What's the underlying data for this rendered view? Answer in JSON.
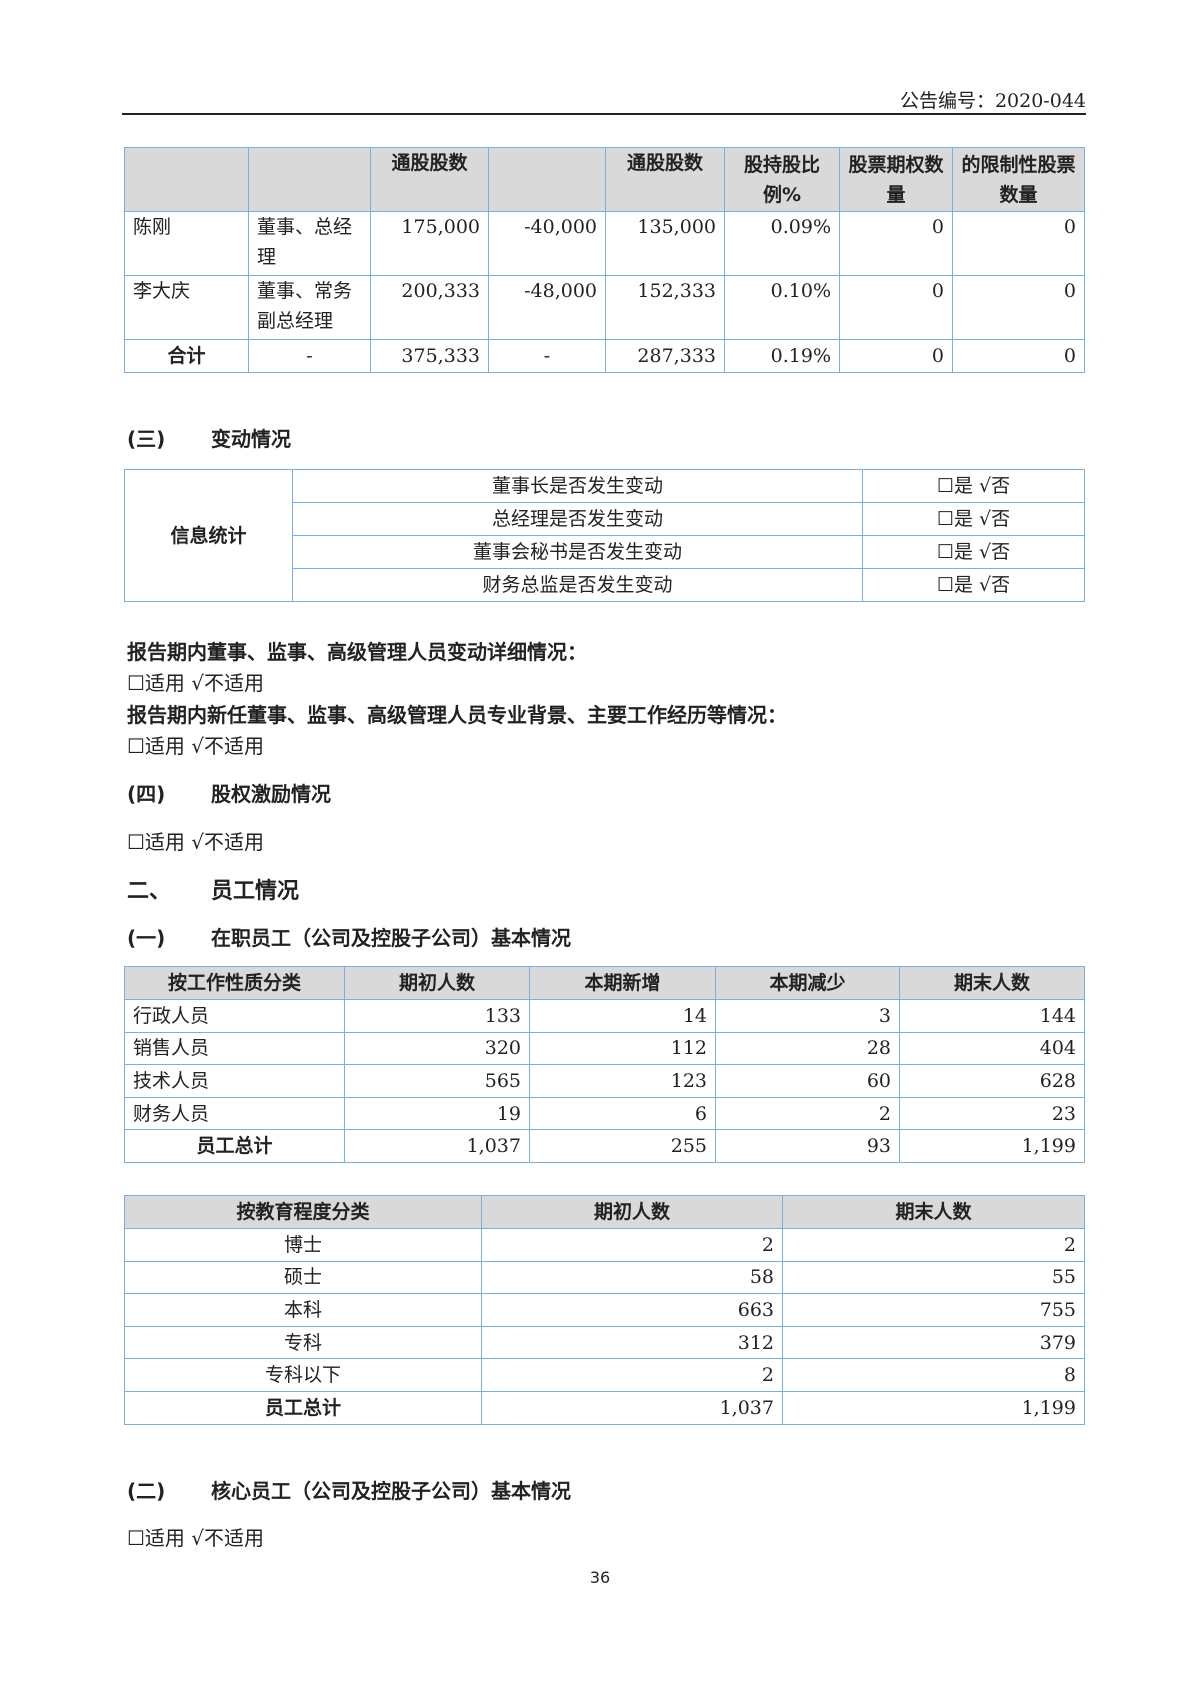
{
  "header": {
    "announcement_no": "公告编号：2020-044"
  },
  "shareholding_table": {
    "headers": [
      "",
      "",
      "通股股数",
      "",
      "通股股数",
      "股持股比例%",
      "股票期权数量",
      "的限制性股票数量"
    ],
    "rows": [
      [
        "陈刚",
        "董事、总经理",
        "175,000",
        "-40,000",
        "135,000",
        "0.09%",
        "0",
        "0"
      ],
      [
        "李大庆",
        "董事、常务副总经理",
        "200,333",
        "-48,000",
        "152,333",
        "0.10%",
        "0",
        "0"
      ],
      [
        "合计",
        "-",
        "375,333",
        "-",
        "287,333",
        "0.19%",
        "0",
        "0"
      ]
    ]
  },
  "section3": {
    "num": "(三)",
    "title": "变动情况"
  },
  "change_table": {
    "label": "信息统计",
    "rows": [
      {
        "item": "董事长是否发生变动",
        "value": "☐是 √否"
      },
      {
        "item": "总经理是否发生变动",
        "value": "☐是 √否"
      },
      {
        "item": "董事会秘书是否发生变动",
        "value": "☐是 √否"
      },
      {
        "item": "财务总监是否发生变动",
        "value": "☐是 √否"
      }
    ]
  },
  "detail1": {
    "title": "报告期内董事、监事、高级管理人员变动详细情况：",
    "value": "☐适用 √不适用"
  },
  "detail2": {
    "title": "报告期内新任董事、监事、高级管理人员专业背景、主要工作经历等情况：",
    "value": "☐适用 √不适用"
  },
  "section4": {
    "num": "(四)",
    "title": "股权激励情况",
    "value": "☐适用 √不适用"
  },
  "part2": {
    "num": "二、",
    "title": "员工情况"
  },
  "sub1": {
    "num": "(一)",
    "title": "在职员工（公司及控股子公司）基本情况"
  },
  "work_table": {
    "headers": [
      "按工作性质分类",
      "期初人数",
      "本期新增",
      "本期减少",
      "期末人数"
    ],
    "rows": [
      [
        "行政人员",
        "133",
        "14",
        "3",
        "144"
      ],
      [
        "销售人员",
        "320",
        "112",
        "28",
        "404"
      ],
      [
        "技术人员",
        "565",
        "123",
        "60",
        "628"
      ],
      [
        "财务人员",
        "19",
        "6",
        "2",
        "23"
      ],
      [
        "员工总计",
        "1,037",
        "255",
        "93",
        "1,199"
      ]
    ]
  },
  "edu_table": {
    "headers": [
      "按教育程度分类",
      "期初人数",
      "期末人数"
    ],
    "rows": [
      [
        "博士",
        "2",
        "2"
      ],
      [
        "硕士",
        "58",
        "55"
      ],
      [
        "本科",
        "663",
        "755"
      ],
      [
        "专科",
        "312",
        "379"
      ],
      [
        "专科以下",
        "2",
        "8"
      ],
      [
        "员工总计",
        "1,037",
        "1,199"
      ]
    ]
  },
  "sub2": {
    "num": "(二)",
    "title": "核心员工（公司及控股子公司）基本情况",
    "value": "☐适用 √不适用"
  },
  "page_number": "36",
  "colors": {
    "border": "#7aaedc",
    "header_bg": "#d9d9d9"
  }
}
